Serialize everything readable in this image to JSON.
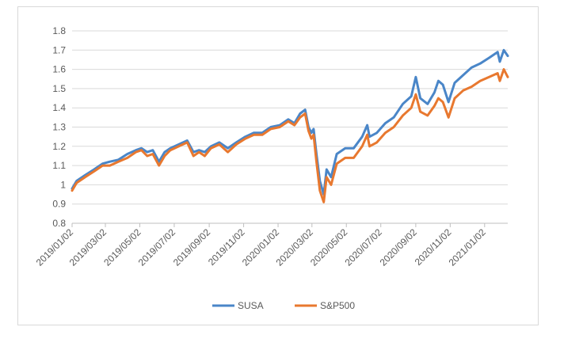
{
  "chart_data": {
    "type": "line",
    "title": "",
    "xlabel": "",
    "ylabel": "",
    "ylim": [
      0.8,
      1.8
    ],
    "yticks": [
      "0.8",
      "0.9",
      "1",
      "1.1",
      "1.2",
      "1.3",
      "1.4",
      "1.5",
      "1.6",
      "1.7",
      "1.8"
    ],
    "xlim": [
      "2019/01/02",
      "2021/02/12"
    ],
    "xticks": [
      "2019/01/02",
      "2019/03/02",
      "2019/05/02",
      "2019/07/02",
      "2019/09/02",
      "2019/11/02",
      "2020/01/02",
      "2020/03/02",
      "2020/05/02",
      "2020/07/02",
      "2020/09/02",
      "2020/11/02",
      "2021/01/02"
    ],
    "grid": "horizontal",
    "legend": "bottom",
    "series": [
      {
        "name": "SUSA",
        "color": "#4a86c8",
        "points": [
          [
            "2019/01/02",
            0.98
          ],
          [
            "2019/01/10",
            1.02
          ],
          [
            "2019/01/25",
            1.05
          ],
          [
            "2019/02/10",
            1.08
          ],
          [
            "2019/02/25",
            1.11
          ],
          [
            "2019/03/10",
            1.12
          ],
          [
            "2019/03/25",
            1.13
          ],
          [
            "2019/04/10",
            1.16
          ],
          [
            "2019/04/25",
            1.18
          ],
          [
            "2019/05/05",
            1.19
          ],
          [
            "2019/05/15",
            1.17
          ],
          [
            "2019/05/25",
            1.18
          ],
          [
            "2019/06/05",
            1.12
          ],
          [
            "2019/06/15",
            1.17
          ],
          [
            "2019/06/25",
            1.19
          ],
          [
            "2019/07/10",
            1.21
          ],
          [
            "2019/07/25",
            1.23
          ],
          [
            "2019/08/05",
            1.17
          ],
          [
            "2019/08/15",
            1.18
          ],
          [
            "2019/08/25",
            1.17
          ],
          [
            "2019/09/05",
            1.2
          ],
          [
            "2019/09/20",
            1.22
          ],
          [
            "2019/10/05",
            1.19
          ],
          [
            "2019/10/20",
            1.22
          ],
          [
            "2019/11/05",
            1.25
          ],
          [
            "2019/11/20",
            1.27
          ],
          [
            "2019/12/05",
            1.27
          ],
          [
            "2019/12/20",
            1.3
          ],
          [
            "2020/01/05",
            1.31
          ],
          [
            "2020/01/20",
            1.34
          ],
          [
            "2020/01/31",
            1.32
          ],
          [
            "2020/02/10",
            1.37
          ],
          [
            "2020/02/19",
            1.39
          ],
          [
            "2020/02/25",
            1.3
          ],
          [
            "2020/03/01",
            1.27
          ],
          [
            "2020/03/05",
            1.29
          ],
          [
            "2020/03/10",
            1.16
          ],
          [
            "2020/03/16",
            1.02
          ],
          [
            "2020/03/23",
            0.95
          ],
          [
            "2020/03/28",
            1.08
          ],
          [
            "2020/04/05",
            1.04
          ],
          [
            "2020/04/15",
            1.16
          ],
          [
            "2020/04/30",
            1.19
          ],
          [
            "2020/05/15",
            1.19
          ],
          [
            "2020/05/30",
            1.25
          ],
          [
            "2020/06/08",
            1.31
          ],
          [
            "2020/06/12",
            1.25
          ],
          [
            "2020/06/25",
            1.27
          ],
          [
            "2020/07/10",
            1.32
          ],
          [
            "2020/07/25",
            1.35
          ],
          [
            "2020/08/10",
            1.42
          ],
          [
            "2020/08/25",
            1.46
          ],
          [
            "2020/09/02",
            1.56
          ],
          [
            "2020/09/10",
            1.45
          ],
          [
            "2020/09/23",
            1.42
          ],
          [
            "2020/10/05",
            1.48
          ],
          [
            "2020/10/12",
            1.54
          ],
          [
            "2020/10/20",
            1.52
          ],
          [
            "2020/10/30",
            1.43
          ],
          [
            "2020/11/10",
            1.53
          ],
          [
            "2020/11/25",
            1.57
          ],
          [
            "2020/12/10",
            1.61
          ],
          [
            "2020/12/25",
            1.63
          ],
          [
            "2021/01/10",
            1.66
          ],
          [
            "2021/01/25",
            1.69
          ],
          [
            "2021/01/29",
            1.64
          ],
          [
            "2021/02/05",
            1.7
          ],
          [
            "2021/02/12",
            1.67
          ]
        ]
      },
      {
        "name": "S&P500",
        "color": "#e8782f",
        "points": [
          [
            "2019/01/02",
            0.97
          ],
          [
            "2019/01/10",
            1.01
          ],
          [
            "2019/01/25",
            1.04
          ],
          [
            "2019/02/10",
            1.07
          ],
          [
            "2019/02/25",
            1.1
          ],
          [
            "2019/03/10",
            1.1
          ],
          [
            "2019/03/25",
            1.12
          ],
          [
            "2019/04/10",
            1.14
          ],
          [
            "2019/04/25",
            1.17
          ],
          [
            "2019/05/05",
            1.18
          ],
          [
            "2019/05/15",
            1.15
          ],
          [
            "2019/05/25",
            1.16
          ],
          [
            "2019/06/05",
            1.1
          ],
          [
            "2019/06/15",
            1.15
          ],
          [
            "2019/06/25",
            1.18
          ],
          [
            "2019/07/10",
            1.2
          ],
          [
            "2019/07/25",
            1.22
          ],
          [
            "2019/08/05",
            1.15
          ],
          [
            "2019/08/15",
            1.17
          ],
          [
            "2019/08/25",
            1.15
          ],
          [
            "2019/09/05",
            1.19
          ],
          [
            "2019/09/20",
            1.21
          ],
          [
            "2019/10/05",
            1.17
          ],
          [
            "2019/10/20",
            1.21
          ],
          [
            "2019/11/05",
            1.24
          ],
          [
            "2019/11/20",
            1.26
          ],
          [
            "2019/12/05",
            1.26
          ],
          [
            "2019/12/20",
            1.29
          ],
          [
            "2020/01/05",
            1.3
          ],
          [
            "2020/01/20",
            1.33
          ],
          [
            "2020/01/31",
            1.31
          ],
          [
            "2020/02/10",
            1.35
          ],
          [
            "2020/02/19",
            1.37
          ],
          [
            "2020/02/25",
            1.28
          ],
          [
            "2020/03/01",
            1.24
          ],
          [
            "2020/03/05",
            1.26
          ],
          [
            "2020/03/10",
            1.12
          ],
          [
            "2020/03/16",
            0.97
          ],
          [
            "2020/03/23",
            0.91
          ],
          [
            "2020/03/28",
            1.04
          ],
          [
            "2020/04/05",
            1.0
          ],
          [
            "2020/04/15",
            1.11
          ],
          [
            "2020/04/30",
            1.14
          ],
          [
            "2020/05/15",
            1.14
          ],
          [
            "2020/05/30",
            1.2
          ],
          [
            "2020/06/08",
            1.26
          ],
          [
            "2020/06/12",
            1.2
          ],
          [
            "2020/06/25",
            1.22
          ],
          [
            "2020/07/10",
            1.27
          ],
          [
            "2020/07/25",
            1.3
          ],
          [
            "2020/08/10",
            1.36
          ],
          [
            "2020/08/25",
            1.4
          ],
          [
            "2020/09/02",
            1.47
          ],
          [
            "2020/09/10",
            1.38
          ],
          [
            "2020/09/23",
            1.36
          ],
          [
            "2020/10/05",
            1.41
          ],
          [
            "2020/10/12",
            1.45
          ],
          [
            "2020/10/20",
            1.43
          ],
          [
            "2020/10/30",
            1.35
          ],
          [
            "2020/11/10",
            1.45
          ],
          [
            "2020/11/25",
            1.49
          ],
          [
            "2020/12/10",
            1.51
          ],
          [
            "2020/12/25",
            1.54
          ],
          [
            "2021/01/10",
            1.56
          ],
          [
            "2021/01/25",
            1.58
          ],
          [
            "2021/01/29",
            1.54
          ],
          [
            "2021/02/05",
            1.6
          ],
          [
            "2021/02/12",
            1.56
          ]
        ]
      }
    ]
  }
}
